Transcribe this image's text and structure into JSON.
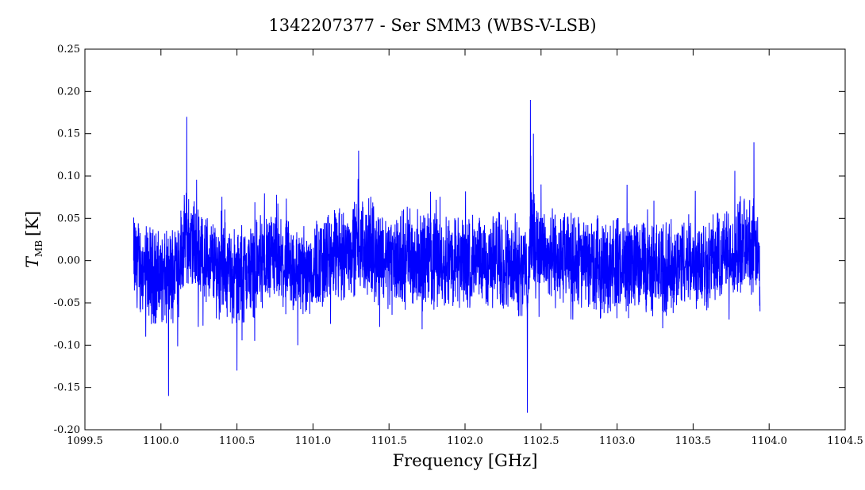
{
  "chart_data": {
    "type": "line",
    "title": "1342207377 - Ser SMM3 (WBS-V-LSB)",
    "xlabel": "Frequency [GHz]",
    "ylabel_main": "T",
    "ylabel_sub": "MB",
    "ylabel_unit": "[K]",
    "xlim": [
      1099.5,
      1104.5
    ],
    "ylim": [
      -0.2,
      0.25
    ],
    "x_ticks": [
      "1099.5",
      "1100.0",
      "1100.5",
      "1101.0",
      "1101.5",
      "1102.0",
      "1102.5",
      "1103.0",
      "1103.5",
      "1104.0",
      "1104.5"
    ],
    "y_ticks": [
      "-0.20",
      "-0.15",
      "-0.10",
      "-0.05",
      "0.00",
      "0.05",
      "0.10",
      "0.15",
      "0.20",
      "0.25"
    ],
    "line_color": "#0000ff",
    "grid": false,
    "series": [
      {
        "x": [
          1099.82,
          1099.9,
          1100.05,
          1100.17,
          1100.3,
          1100.5,
          1100.7,
          1100.9,
          1101.1,
          1101.3,
          1101.5,
          1101.7,
          1101.9,
          1102.1,
          1102.3,
          1102.38,
          1102.41,
          1102.43,
          1102.45,
          1102.5,
          1102.55,
          1102.7,
          1102.9,
          1103.1,
          1103.3,
          1103.5,
          1103.7,
          1103.9,
          1103.94
        ],
        "y": [
          0.0,
          -0.09,
          -0.16,
          0.17,
          0.0,
          -0.13,
          0.0,
          -0.1,
          0.0,
          0.13,
          0.0,
          0.02,
          0.0,
          -0.02,
          0.0,
          -0.05,
          -0.18,
          0.19,
          0.15,
          0.09,
          0.02,
          0.0,
          -0.05,
          0.0,
          -0.08,
          0.0,
          0.03,
          0.14,
          -0.06
        ]
      }
    ]
  }
}
